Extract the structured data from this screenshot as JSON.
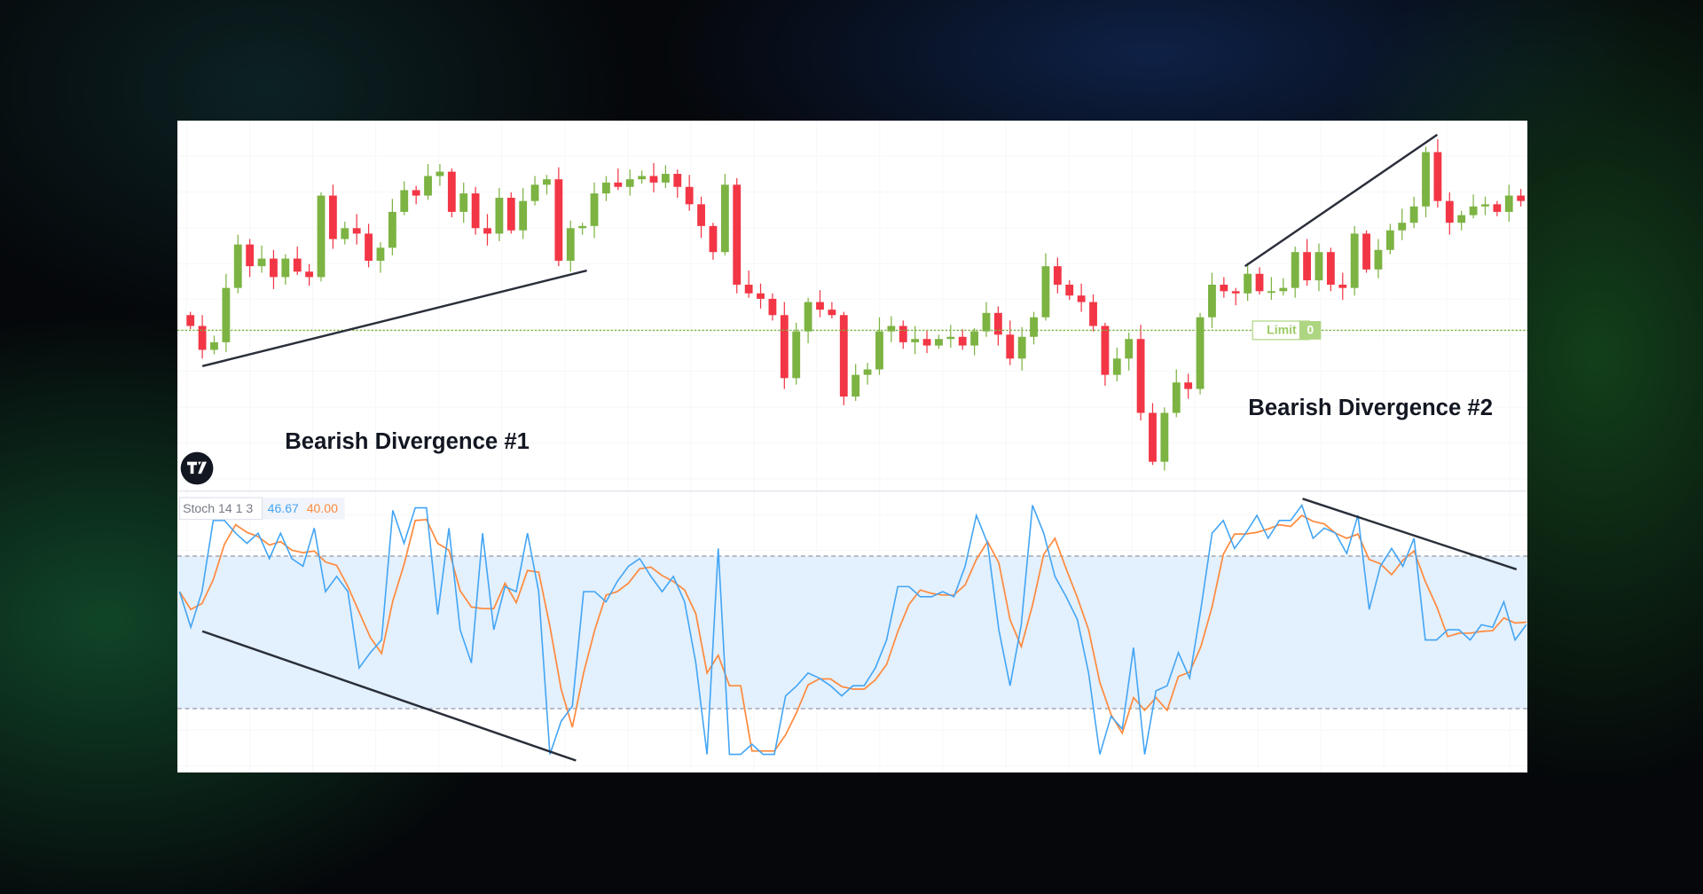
{
  "chart_data": {
    "type": "candlestick",
    "price_pane": {
      "limit_line": 146,
      "limit_label": "Limit",
      "limit_qty": "0",
      "closes": [
        150,
        128,
        135,
        185,
        225,
        205,
        212,
        195,
        212,
        200,
        195,
        270,
        230,
        240,
        235,
        210,
        222,
        255,
        275,
        270,
        288,
        292,
        255,
        272,
        240,
        235,
        268,
        238,
        265,
        280,
        285,
        210,
        240,
        242,
        272,
        282,
        278,
        285,
        288,
        282,
        290,
        278,
        262,
        242,
        218,
        280,
        188,
        180,
        175,
        160,
        102,
        145,
        172,
        165,
        160,
        85,
        105,
        110,
        145,
        150,
        135,
        138,
        132,
        138,
        140,
        132,
        145,
        162,
        142,
        120,
        140,
        158,
        205,
        188,
        178,
        172,
        150,
        105,
        120,
        138,
        70,
        25,
        70,
        98,
        92,
        158,
        188,
        182,
        180,
        198,
        182,
        182,
        185,
        218,
        192,
        218,
        188,
        185,
        235,
        202,
        220,
        238,
        245,
        260,
        310,
        265,
        245,
        252,
        260,
        262,
        255,
        270,
        265
      ],
      "colors": {
        "up": "#7cb342",
        "down": "#f23645",
        "limit": "#7cb342"
      }
    },
    "stochastic": {
      "legend": "Stoch 14 1 3",
      "k_value": "46.67",
      "d_value": "40.00",
      "upper_band": 80,
      "lower_band": 20,
      "ylim": [
        0,
        100
      ],
      "k": [
        66,
        52,
        66,
        94,
        94,
        89,
        85,
        89,
        79,
        89,
        79,
        76,
        91,
        66,
        72,
        66,
        36,
        42,
        47,
        98,
        85,
        99,
        99,
        57,
        91,
        51,
        38,
        89,
        51,
        68,
        66,
        89,
        66,
        2,
        15,
        21,
        66,
        66,
        62,
        70,
        76,
        79,
        72,
        66,
        72,
        62,
        38,
        2,
        83,
        2,
        2,
        6,
        2,
        2,
        25,
        29,
        34,
        32,
        29,
        25,
        29,
        29,
        36,
        47,
        68,
        68,
        64,
        64,
        66,
        64,
        76,
        96,
        85,
        51,
        29,
        53,
        100,
        89,
        72,
        64,
        55,
        34,
        2,
        17,
        12,
        44,
        2,
        27,
        29,
        42,
        32,
        59,
        89,
        94,
        83,
        89,
        96,
        87,
        94,
        94,
        100,
        87,
        91,
        89,
        81,
        96,
        59,
        76,
        83,
        76,
        87,
        47,
        47,
        51,
        51,
        47,
        53,
        52,
        62,
        47,
        53
      ],
      "colors": {
        "k": "#42a5f5",
        "d": "#ff8a3d",
        "band": "#e3f0fd"
      }
    },
    "annotations": [
      "Bearish Divergence #1",
      "Bearish Divergence #2"
    ]
  },
  "branding": {
    "logo": "TV"
  }
}
